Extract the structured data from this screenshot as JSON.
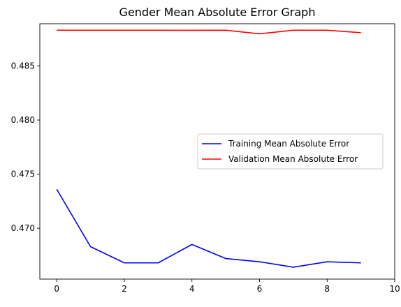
{
  "chart_data": {
    "type": "line",
    "title": "Gender Mean Absolute Error Graph",
    "xlabel": "",
    "ylabel": "",
    "xlim": [
      -0.5,
      10
    ],
    "ylim": [
      0.4653,
      0.4889
    ],
    "grid": false,
    "legend_position": "center-right",
    "x_ticks": [
      0,
      2,
      4,
      6,
      8,
      10
    ],
    "y_ticks": [
      0.47,
      0.475,
      0.48,
      0.485
    ],
    "x_tick_labels": [
      "0",
      "2",
      "4",
      "6",
      "8",
      "10"
    ],
    "y_tick_labels": [
      "0.470",
      "0.475",
      "0.480",
      "0.485"
    ],
    "x": [
      0,
      1,
      2,
      3,
      4,
      5,
      6,
      7,
      8,
      9
    ],
    "series": [
      {
        "name": "Training Mean Absolute Error",
        "color": "#0000ff",
        "values": [
          0.4736,
          0.4683,
          0.4668,
          0.4668,
          0.4685,
          0.4672,
          0.4669,
          0.4664,
          0.4669,
          0.4668
        ]
      },
      {
        "name": "Validation Mean Absolute Error",
        "color": "#ff0000",
        "values": [
          0.4883,
          0.4883,
          0.4883,
          0.4883,
          0.48829,
          0.4883,
          0.48797,
          0.4883,
          0.4883,
          0.48807
        ]
      }
    ]
  }
}
